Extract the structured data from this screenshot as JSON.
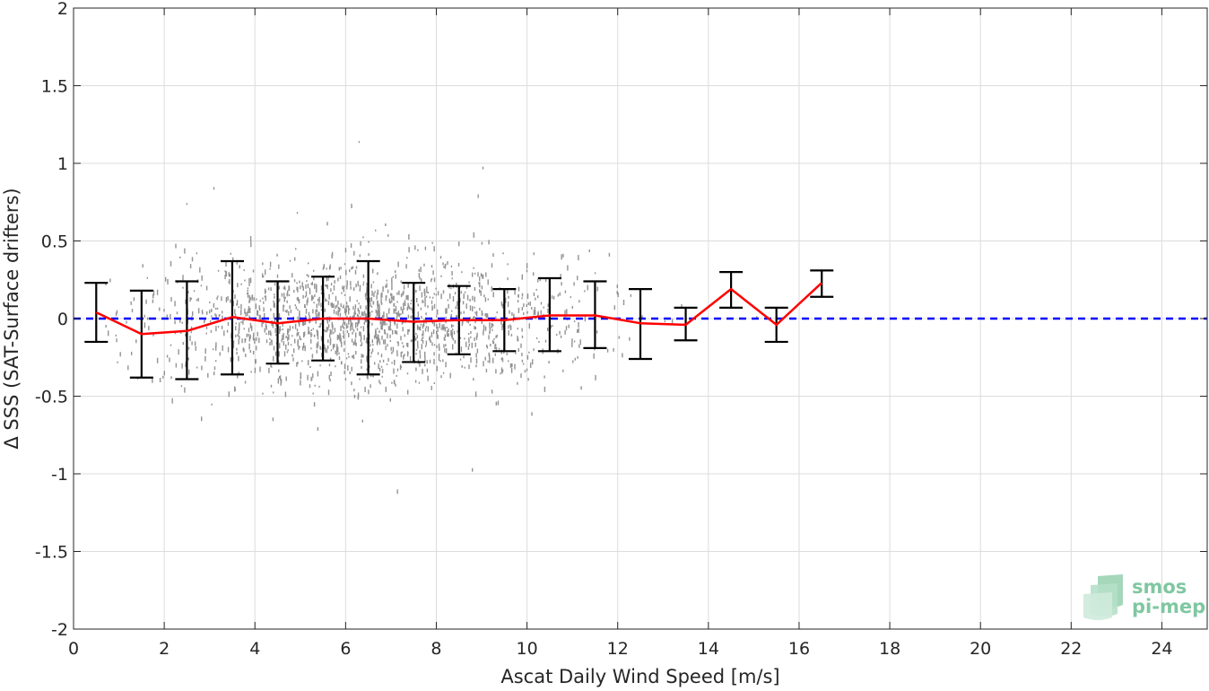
{
  "chart_data": {
    "type": "scatter",
    "title": "",
    "xlabel": "Ascat Daily Wind Speed [m/s]",
    "ylabel": "Δ SSS (SAT-Surface drifters)",
    "xlim": [
      0,
      25
    ],
    "ylim": [
      -2,
      2
    ],
    "xticks": [
      0,
      2,
      4,
      6,
      8,
      10,
      12,
      14,
      16,
      18,
      20,
      22,
      24
    ],
    "yticks": [
      -2,
      -1.5,
      -1,
      -0.5,
      0,
      0.5,
      1,
      1.5,
      2
    ],
    "ytick_labels": [
      "-2",
      "-1.5",
      "-1",
      "-0.5",
      "0",
      "0.5",
      "1",
      "1.5",
      "2"
    ],
    "grid": true,
    "series": [
      {
        "kind": "scatter-cloud",
        "color": "#808080",
        "x_range": [
          0.5,
          17
        ],
        "note_points": "dense gray cloud of individual matchups"
      },
      {
        "kind": "binned-mean",
        "color": "#ff0000",
        "x": [
          0.5,
          1.5,
          2.5,
          3.5,
          4.5,
          5.5,
          6.5,
          7.5,
          8.5,
          9.5,
          10.5,
          11.5,
          12.5,
          13.5,
          14.5,
          15.5,
          16.5
        ],
        "y": [
          0.04,
          -0.1,
          -0.08,
          0.01,
          -0.03,
          0.0,
          0.0,
          -0.02,
          -0.01,
          -0.01,
          0.02,
          0.02,
          -0.03,
          -0.04,
          0.19,
          -0.04,
          0.23
        ],
        "err_low": [
          -0.15,
          -0.38,
          -0.39,
          -0.36,
          -0.29,
          -0.27,
          -0.36,
          -0.28,
          -0.23,
          -0.21,
          -0.21,
          -0.19,
          -0.26,
          -0.14,
          0.07,
          -0.15,
          0.14
        ],
        "err_high": [
          0.23,
          0.18,
          0.24,
          0.37,
          0.24,
          0.27,
          0.37,
          0.23,
          0.21,
          0.19,
          0.26,
          0.24,
          0.19,
          0.07,
          0.3,
          0.07,
          0.31
        ]
      },
      {
        "kind": "reference-line",
        "color": "#0000ff",
        "y": 0
      }
    ],
    "logo": {
      "line1": "smos",
      "line2": "pi-mep",
      "color": "#7fc7a1"
    }
  }
}
